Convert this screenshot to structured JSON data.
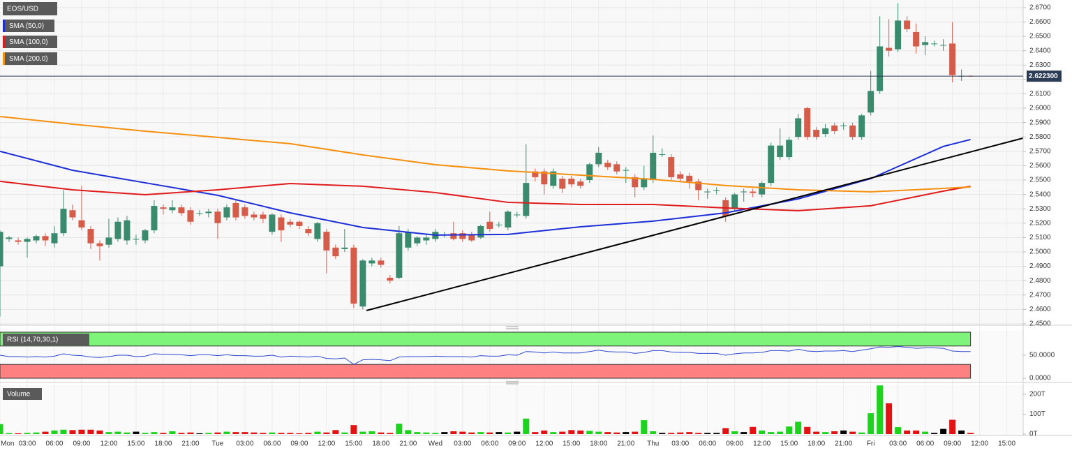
{
  "chart_data": [
    {
      "type": "candlestick",
      "title": "EOS/USD",
      "up_color": "#3a8a6e",
      "down_color": "#d65c4a",
      "grid": true,
      "xlim": [
        0,
        112.8
      ],
      "ylim": [
        2.449,
        2.6753
      ],
      "yticks": [
        {
          "value": 2.45,
          "label": "2.4500"
        },
        {
          "value": 2.46,
          "label": "2.4600"
        },
        {
          "value": 2.47,
          "label": "2.4700"
        },
        {
          "value": 2.48,
          "label": "2.4800"
        },
        {
          "value": 2.49,
          "label": "2.4900"
        },
        {
          "value": 2.5,
          "label": "2.5000"
        },
        {
          "value": 2.51,
          "label": "2.5100"
        },
        {
          "value": 2.52,
          "label": "2.5200"
        },
        {
          "value": 2.53,
          "label": "2.5300"
        },
        {
          "value": 2.54,
          "label": "2.5400"
        },
        {
          "value": 2.55,
          "label": "2.5500"
        },
        {
          "value": 2.56,
          "label": "2.5600"
        },
        {
          "value": 2.57,
          "label": "2.5700"
        },
        {
          "value": 2.58,
          "label": "2.5800"
        },
        {
          "value": 2.59,
          "label": "2.5900"
        },
        {
          "value": 2.6,
          "label": "2.6000"
        },
        {
          "value": 2.61,
          "label": "2.6100"
        },
        {
          "value": 2.62,
          "label": "2.6200"
        },
        {
          "value": 2.63,
          "label": "2.6300"
        },
        {
          "value": 2.64,
          "label": "2.6400"
        },
        {
          "value": 2.65,
          "label": "2.6500"
        },
        {
          "value": 2.66,
          "label": "2.6600"
        },
        {
          "value": 2.67,
          "label": "2.6700"
        }
      ],
      "open": [
        2.49,
        2.509,
        2.508,
        2.507,
        2.508,
        2.511,
        2.506,
        2.513,
        2.529,
        2.522,
        2.516,
        2.506,
        2.505,
        2.509,
        2.508,
        2.509,
        2.508,
        2.515,
        2.531,
        2.529,
        2.531,
        2.529,
        2.527,
        2.527,
        2.528,
        2.524,
        2.534,
        2.531,
        2.526,
        2.526,
        2.514,
        2.524,
        2.521,
        2.521,
        2.516,
        2.509,
        2.514,
        2.503,
        2.502,
        2.503,
        2.462,
        2.492,
        2.494,
        2.482,
        2.482,
        2.503,
        2.506,
        2.508,
        2.509,
        2.512,
        2.513,
        2.513,
        2.512,
        2.51,
        2.521,
        2.519,
        2.517,
        2.526,
        2.525,
        2.556,
        2.556,
        2.546,
        2.551,
        2.551,
        2.549,
        2.55,
        2.561,
        2.562,
        2.561,
        2.557,
        2.552,
        2.545,
        2.55,
        2.568,
        2.566,
        2.554,
        2.553,
        2.549,
        2.542,
        2.543,
        2.536,
        2.53,
        2.542,
        2.542,
        2.54,
        2.548,
        2.566,
        2.566,
        2.58,
        2.6,
        2.585,
        2.582,
        2.588,
        2.588,
        2.588,
        2.58,
        2.597,
        2.612,
        2.642,
        2.641,
        2.661,
        2.653,
        2.644,
        2.645,
        2.644,
        2.645,
        2.6225,
        2.6225
      ],
      "high": [
        2.515,
        2.511,
        2.51,
        2.51,
        2.512,
        2.513,
        2.518,
        2.543,
        2.533,
        2.546,
        2.518,
        2.508,
        2.523,
        2.524,
        2.525,
        2.512,
        2.516,
        2.536,
        2.533,
        2.536,
        2.533,
        2.531,
        2.529,
        2.53,
        2.53,
        2.533,
        2.536,
        2.533,
        2.528,
        2.528,
        2.527,
        2.526,
        2.523,
        2.522,
        2.518,
        2.521,
        2.516,
        2.505,
        2.516,
        2.505,
        2.495,
        2.496,
        2.496,
        2.484,
        2.518,
        2.516,
        2.511,
        2.512,
        2.516,
        2.514,
        2.521,
        2.515,
        2.514,
        2.519,
        2.528,
        2.521,
        2.529,
        2.528,
        2.575,
        2.558,
        2.558,
        2.558,
        2.553,
        2.553,
        2.551,
        2.562,
        2.573,
        2.564,
        2.563,
        2.559,
        2.554,
        2.56,
        2.581,
        2.572,
        2.568,
        2.556,
        2.555,
        2.551,
        2.544,
        2.545,
        2.538,
        2.541,
        2.544,
        2.544,
        2.549,
        2.576,
        2.586,
        2.58,
        2.596,
        2.601,
        2.587,
        2.589,
        2.59,
        2.59,
        2.59,
        2.596,
        2.626,
        2.664,
        2.662,
        2.673,
        2.664,
        2.659,
        2.65,
        2.647,
        2.648,
        2.66,
        2.627,
        2.6228
      ],
      "low": [
        2.455,
        2.507,
        2.505,
        2.496,
        2.506,
        2.504,
        2.503,
        2.511,
        2.522,
        2.515,
        2.502,
        2.494,
        2.503,
        2.507,
        2.505,
        2.505,
        2.506,
        2.513,
        2.526,
        2.527,
        2.525,
        2.519,
        2.525,
        2.524,
        2.509,
        2.522,
        2.522,
        2.523,
        2.522,
        2.52,
        2.512,
        2.507,
        2.517,
        2.516,
        2.511,
        2.507,
        2.485,
        2.495,
        2.5,
        2.461,
        2.46,
        2.49,
        2.489,
        2.478,
        2.481,
        2.501,
        2.504,
        2.505,
        2.507,
        2.51,
        2.508,
        2.507,
        2.507,
        2.509,
        2.514,
        2.517,
        2.515,
        2.524,
        2.523,
        2.549,
        2.54,
        2.544,
        2.541,
        2.545,
        2.544,
        2.548,
        2.559,
        2.557,
        2.554,
        2.548,
        2.538,
        2.543,
        2.548,
        2.566,
        2.55,
        2.549,
        2.544,
        2.536,
        2.537,
        2.54,
        2.521,
        2.528,
        2.535,
        2.538,
        2.538,
        2.546,
        2.564,
        2.564,
        2.578,
        2.578,
        2.578,
        2.58,
        2.582,
        2.585,
        2.578,
        2.578,
        2.595,
        2.61,
        2.636,
        2.639,
        2.653,
        2.638,
        2.637,
        2.643,
        2.64,
        2.618,
        2.619,
        2.622
      ],
      "close": [
        2.514,
        2.51,
        2.507,
        2.509,
        2.511,
        2.508,
        2.513,
        2.53,
        2.524,
        2.517,
        2.506,
        2.504,
        2.51,
        2.521,
        2.522,
        2.509,
        2.515,
        2.532,
        2.53,
        2.531,
        2.527,
        2.521,
        2.527,
        2.528,
        2.52,
        2.531,
        2.524,
        2.525,
        2.524,
        2.523,
        2.526,
        2.515,
        2.519,
        2.518,
        2.513,
        2.52,
        2.501,
        2.497,
        2.503,
        2.464,
        2.494,
        2.494,
        2.491,
        2.48,
        2.513,
        2.514,
        2.51,
        2.51,
        2.514,
        2.512,
        2.509,
        2.509,
        2.508,
        2.518,
        2.516,
        2.519,
        2.528,
        2.526,
        2.548,
        2.552,
        2.547,
        2.556,
        2.544,
        2.547,
        2.546,
        2.561,
        2.569,
        2.559,
        2.556,
        2.557,
        2.545,
        2.551,
        2.569,
        2.568,
        2.552,
        2.551,
        2.549,
        2.543,
        2.542,
        2.543,
        2.525,
        2.54,
        2.542,
        2.541,
        2.548,
        2.574,
        2.574,
        2.578,
        2.593,
        2.58,
        2.58,
        2.586,
        2.584,
        2.588,
        2.58,
        2.595,
        2.612,
        2.643,
        2.64,
        2.661,
        2.655,
        2.643,
        2.646,
        2.645,
        2.644,
        2.623,
        2.6225,
        2.6223
      ],
      "series": [
        {
          "name": "SMA (50,0)",
          "color": "#1c2fd6",
          "x": [
            0,
            8,
            16,
            24,
            32,
            40,
            48,
            56,
            64,
            72,
            80,
            88,
            96,
            104,
            107
          ],
          "values": [
            2.57,
            2.5568,
            2.5481,
            2.5394,
            2.5272,
            2.517,
            2.5117,
            2.5122,
            2.5175,
            2.5214,
            2.5272,
            2.5369,
            2.551,
            2.5734,
            2.5782
          ]
        },
        {
          "name": "SMA (100,0)",
          "color": "#e01b1b",
          "x": [
            0,
            8,
            16,
            24,
            32,
            40,
            48,
            56,
            64,
            72,
            80,
            88,
            96,
            104,
            107
          ],
          "values": [
            2.5491,
            2.5432,
            2.5398,
            2.5432,
            2.5476,
            2.5457,
            2.5413,
            2.5345,
            2.533,
            2.533,
            2.5306,
            2.5287,
            2.5321,
            2.5423,
            2.5457
          ]
        },
        {
          "name": "SMA (200,0)",
          "color": "#f5900f",
          "x": [
            0,
            8,
            16,
            24,
            32,
            40,
            48,
            56,
            64,
            72,
            80,
            88,
            96,
            104,
            107
          ],
          "values": [
            2.5942,
            2.5889,
            2.584,
            2.5797,
            2.5753,
            2.5675,
            2.5607,
            2.5564,
            2.5534,
            2.5505,
            2.5462,
            2.5432,
            2.5418,
            2.5442,
            2.5452
          ]
        }
      ],
      "trendline": {
        "color": "#000000",
        "x": [
          40.4,
          112.8
        ],
        "values": [
          2.4592,
          2.5792
        ]
      },
      "last_price": {
        "value": 2.6223,
        "label": "2.622300",
        "color": "#2b3a55"
      }
    },
    {
      "type": "line",
      "title": "RSI (14,70,30,1)",
      "color": "#2c47d0",
      "ylim": [
        0,
        100
      ],
      "yticks": [
        {
          "value": 50,
          "label": "50.0000"
        },
        {
          "value": 0,
          "label": "0.0000"
        }
      ],
      "upper_band": [
        70,
        100
      ],
      "lower_band": [
        0,
        30
      ],
      "upper_color": "#7ef57a",
      "lower_color": "#ff8080",
      "values": [
        50,
        47,
        47,
        46,
        47,
        46,
        48,
        53,
        50,
        49,
        46,
        45,
        47,
        50,
        50,
        47,
        48,
        53,
        52,
        52,
        51,
        49,
        51,
        51,
        49,
        51,
        49,
        49,
        48,
        48,
        50,
        46,
        48,
        47,
        46,
        48,
        43,
        42,
        44,
        30,
        40,
        41,
        40,
        38,
        46,
        47,
        47,
        47,
        48,
        47,
        47,
        47,
        46,
        49,
        48,
        48,
        51,
        50,
        58,
        57,
        55,
        57,
        55,
        55,
        55,
        58,
        61,
        58,
        57,
        57,
        54,
        56,
        60,
        60,
        57,
        56,
        56,
        54,
        54,
        54,
        50,
        53,
        55,
        55,
        56,
        60,
        60,
        59,
        63,
        59,
        58,
        59,
        59,
        60,
        58,
        61,
        64,
        68,
        67,
        69,
        67,
        65,
        66,
        66,
        65,
        59,
        58,
        58
      ]
    },
    {
      "type": "bar",
      "title": "Volume",
      "up_color": "#1ed31e",
      "down_color": "#e31313",
      "flat_color": "#000000",
      "ylim": [
        0,
        246
      ],
      "yticks": [
        {
          "value": 0,
          "label": "0T"
        },
        {
          "value": 100,
          "label": "100T"
        },
        {
          "value": 200,
          "label": "200T"
        }
      ],
      "values": [
        50,
        5,
        4,
        6,
        8,
        12,
        18,
        22,
        20,
        22,
        22,
        18,
        10,
        12,
        8,
        12,
        6,
        10,
        6,
        14,
        6,
        8,
        4,
        6,
        8,
        12,
        10,
        10,
        8,
        6,
        8,
        6,
        6,
        4,
        6,
        12,
        8,
        20,
        8,
        45,
        12,
        14,
        8,
        6,
        52,
        20,
        10,
        8,
        6,
        10,
        14,
        12,
        8,
        10,
        8,
        10,
        8,
        12,
        78,
        10,
        18,
        10,
        12,
        20,
        18,
        16,
        12,
        10,
        8,
        10,
        12,
        70,
        14,
        6,
        6,
        8,
        10,
        6,
        6,
        6,
        30,
        14,
        10,
        36,
        18,
        10,
        12,
        38,
        62,
        36,
        12,
        10,
        14,
        18,
        12,
        8,
        105,
        245,
        155,
        35,
        18,
        18,
        12,
        6,
        26,
        72,
        18,
        6
      ],
      "xticks": [
        {
          "value": 0,
          "label": "Mon"
        },
        {
          "value": 3,
          "label": "03:00"
        },
        {
          "value": 6,
          "label": "06:00"
        },
        {
          "value": 9,
          "label": "09:00"
        },
        {
          "value": 12,
          "label": "12:00"
        },
        {
          "value": 15,
          "label": "15:00"
        },
        {
          "value": 18,
          "label": "18:00"
        },
        {
          "value": 21,
          "label": "21:00"
        },
        {
          "value": 24,
          "label": "Tue"
        },
        {
          "value": 27,
          "label": "03:00"
        },
        {
          "value": 30,
          "label": "06:00"
        },
        {
          "value": 33,
          "label": "09:00"
        },
        {
          "value": 36,
          "label": "12:00"
        },
        {
          "value": 39,
          "label": "15:00"
        },
        {
          "value": 42,
          "label": "18:00"
        },
        {
          "value": 45,
          "label": "21:00"
        },
        {
          "value": 48,
          "label": "Wed"
        },
        {
          "value": 51,
          "label": "03:00"
        },
        {
          "value": 54,
          "label": "06:00"
        },
        {
          "value": 57,
          "label": "09:00"
        },
        {
          "value": 60,
          "label": "12:00"
        },
        {
          "value": 63,
          "label": "15:00"
        },
        {
          "value": 66,
          "label": "18:00"
        },
        {
          "value": 69,
          "label": "21:00"
        },
        {
          "value": 72,
          "label": "Thu"
        },
        {
          "value": 75,
          "label": "03:00"
        },
        {
          "value": 78,
          "label": "06:00"
        },
        {
          "value": 81,
          "label": "09:00"
        },
        {
          "value": 84,
          "label": "12:00"
        },
        {
          "value": 87,
          "label": "15:00"
        },
        {
          "value": 90,
          "label": "18:00"
        },
        {
          "value": 93,
          "label": "21:00"
        },
        {
          "value": 96,
          "label": "Fri"
        },
        {
          "value": 99,
          "label": "03:00"
        },
        {
          "value": 102,
          "label": "06:00"
        },
        {
          "value": 105,
          "label": "09:00"
        },
        {
          "value": 108,
          "label": "12:00"
        },
        {
          "value": 111,
          "label": "15:00"
        }
      ]
    }
  ]
}
